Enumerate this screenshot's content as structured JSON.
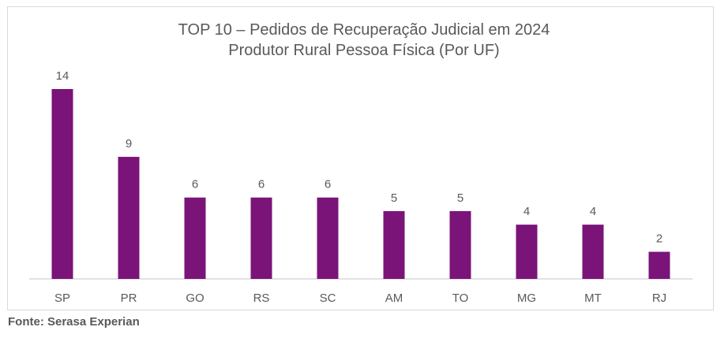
{
  "chart_data": {
    "type": "bar",
    "title": "TOP 10 – Pedidos de Recuperação Judicial em 2024",
    "subtitle": "Produtor Rural Pessoa Física (Por UF)",
    "categories": [
      "SP",
      "PR",
      "GO",
      "RS",
      "SC",
      "AM",
      "TO",
      "MG",
      "MT",
      "RJ"
    ],
    "values": [
      14,
      9,
      6,
      6,
      6,
      5,
      5,
      4,
      4,
      2
    ],
    "data_labels": [
      "14",
      "9",
      "6",
      "6",
      "6",
      "5",
      "5",
      "4",
      "4",
      "2"
    ],
    "ylim": [
      0,
      14
    ],
    "grid": false,
    "legend": "none",
    "bar_color": "#7a1479"
  },
  "source": "Fonte: Serasa Experian"
}
